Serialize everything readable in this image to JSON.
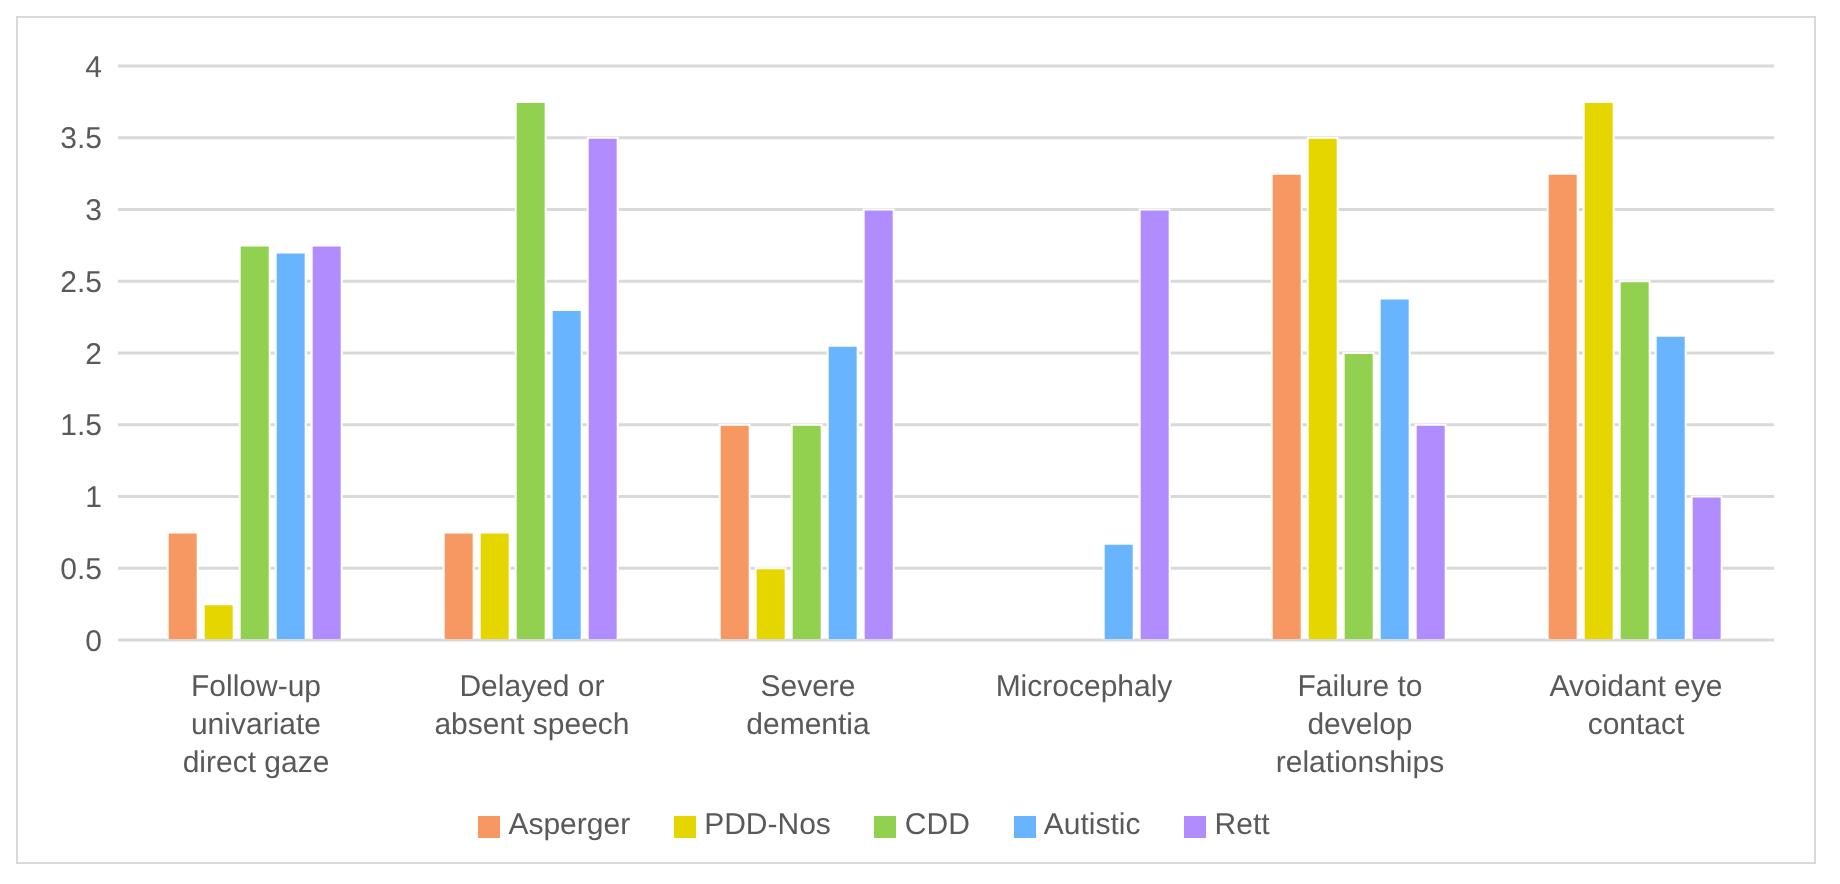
{
  "chart_data": {
    "type": "bar",
    "categories": [
      "Follow-up univariate direct gaze",
      "Delayed or absent speech",
      "Severe dementia",
      "Microcephaly",
      "Failure to develop relationships",
      "Avoidant eye contact"
    ],
    "series": [
      {
        "name": "Asperger",
        "color": "#f79862",
        "values": [
          0.75,
          0.75,
          1.5,
          0,
          3.25,
          3.25
        ]
      },
      {
        "name": "PDD-Nos",
        "color": "#e5d600",
        "values": [
          0.25,
          0.75,
          0.5,
          0,
          3.5,
          3.75
        ]
      },
      {
        "name": "CDD",
        "color": "#92d050",
        "values": [
          2.75,
          3.75,
          1.5,
          0,
          2,
          2.5
        ]
      },
      {
        "name": "Autistic",
        "color": "#69b4ff",
        "values": [
          2.7,
          2.3,
          2.05,
          0.67,
          2.38,
          2.12
        ]
      },
      {
        "name": "Rett",
        "color": "#b18cfe",
        "values": [
          2.75,
          3.5,
          3,
          3,
          1.5,
          1
        ]
      }
    ],
    "ylim": [
      0,
      4
    ],
    "yticks": [
      0,
      0.5,
      1,
      1.5,
      2,
      2.5,
      3,
      3.5,
      4
    ],
    "grid": "y",
    "legend": "bottom"
  }
}
